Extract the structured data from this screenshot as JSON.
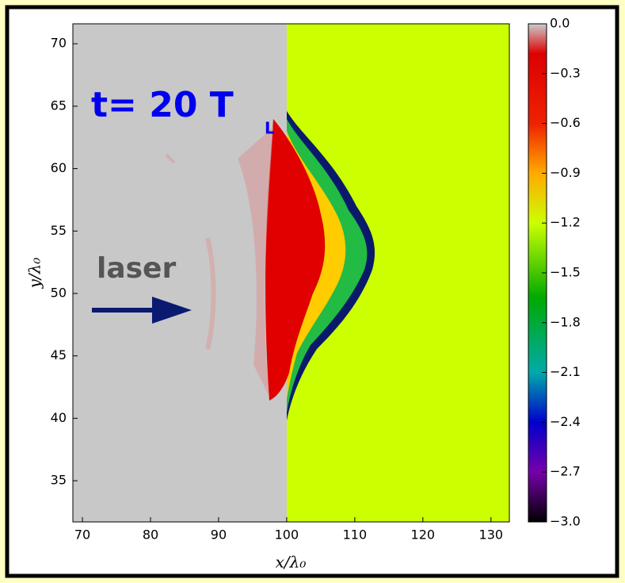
{
  "chart_data": {
    "type": "heatmap",
    "xlabel": "x/λ₀",
    "ylabel": "y/λ₀",
    "xlim": [
      68.6,
      132.7
    ],
    "ylim": [
      31.7,
      71.6
    ],
    "xticks": [
      70,
      80,
      90,
      100,
      110,
      120,
      130
    ],
    "yticks": [
      35,
      40,
      45,
      50,
      55,
      60,
      65,
      70
    ],
    "colorbar": {
      "lim": [
        -3,
        0
      ],
      "ticks": [
        {
          "value": 0,
          "label": "0.0"
        },
        {
          "value": -0.3,
          "label": "−0.3"
        },
        {
          "value": -0.6,
          "label": "−0.6"
        },
        {
          "value": -0.9,
          "label": "−0.9"
        },
        {
          "value": -1.2,
          "label": "−1.2"
        },
        {
          "value": -1.5,
          "label": "−1.5"
        },
        {
          "value": -1.8,
          "label": "−1.8"
        },
        {
          "value": -2.1,
          "label": "−2.1"
        },
        {
          "value": -2.4,
          "label": "−2.4"
        },
        {
          "value": -2.7,
          "label": "−2.7"
        },
        {
          "value": -3,
          "label": "−3.0"
        }
      ]
    },
    "annotations": {
      "time": "t= 20 T",
      "time_sub": "L",
      "laser": "laser"
    }
  }
}
